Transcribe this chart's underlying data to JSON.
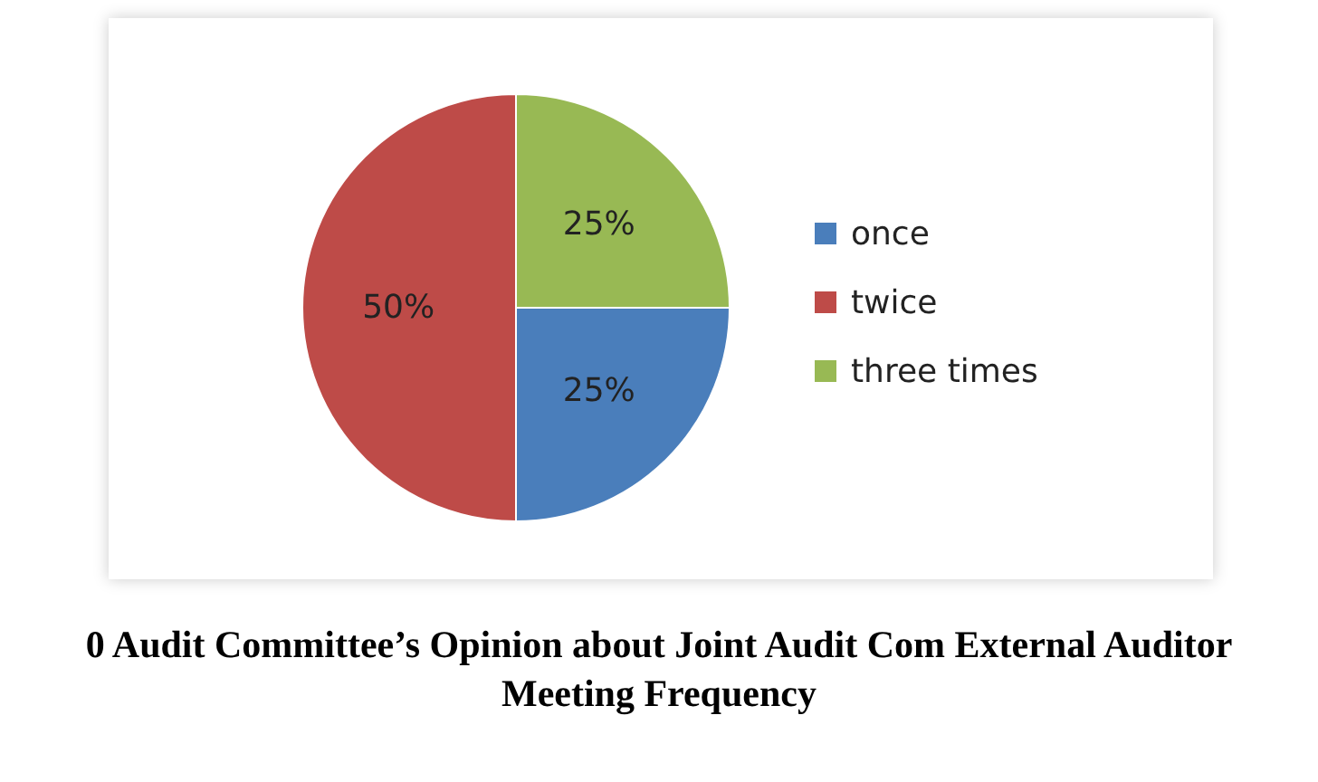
{
  "chart_data": {
    "type": "pie",
    "title": "0 Audit Committee’s Opinion about Joint Audit Com External Auditor Meeting Frequency",
    "categories": [
      "once",
      "twice",
      "three times"
    ],
    "values": [
      25,
      50,
      25
    ],
    "value_labels": [
      "25%",
      "50%",
      "25%"
    ],
    "colors": [
      "#4a7ebb",
      "#be4b48",
      "#98b954"
    ],
    "legend": "right"
  }
}
